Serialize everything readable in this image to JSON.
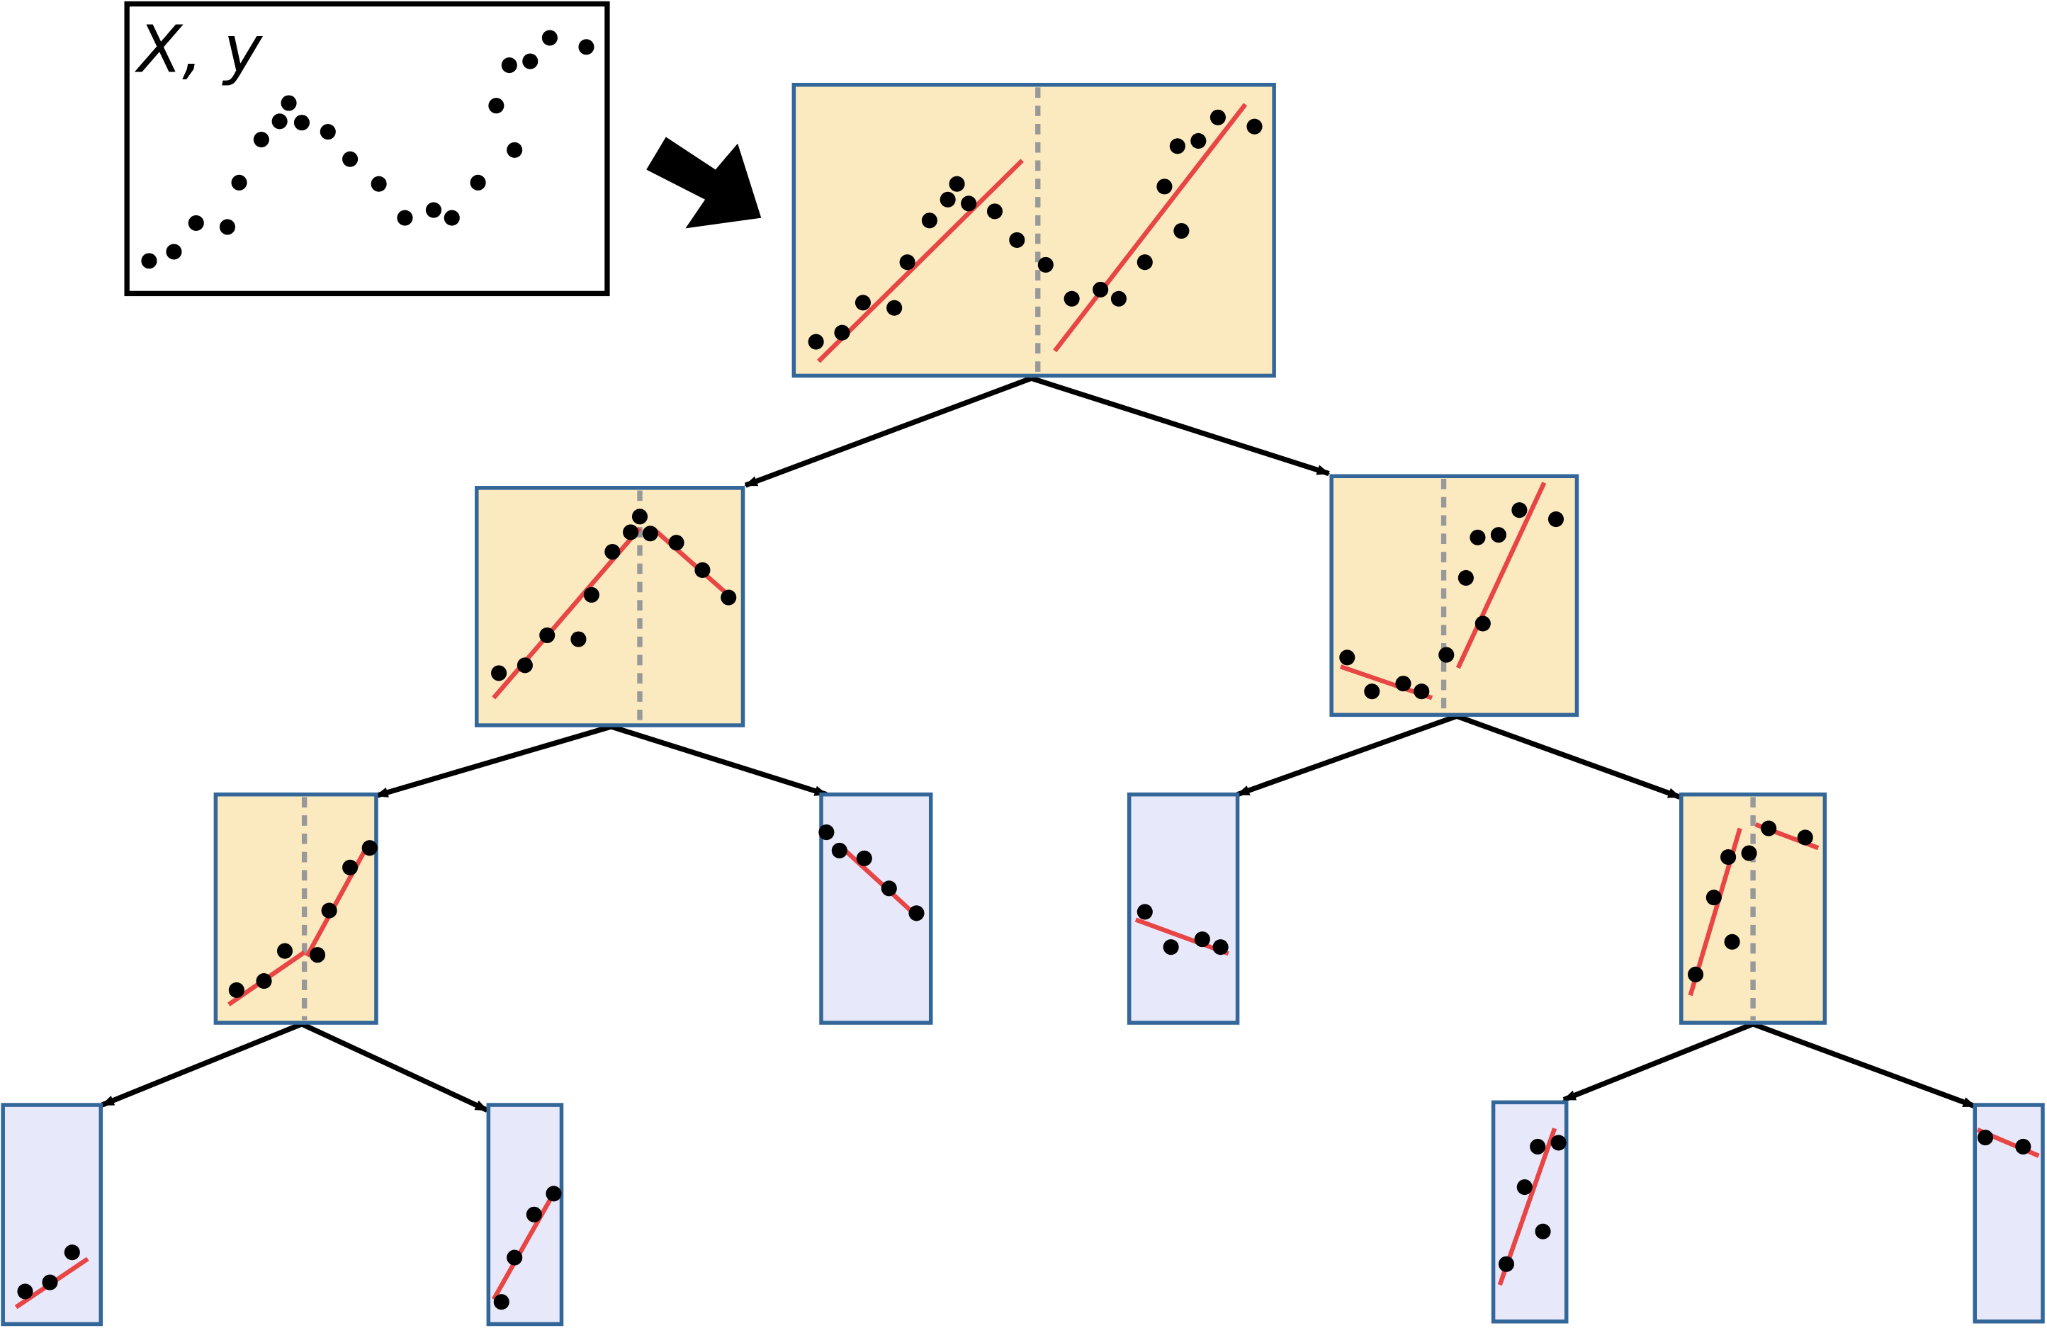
{
  "input_box": {
    "label": "X, y"
  }
}
